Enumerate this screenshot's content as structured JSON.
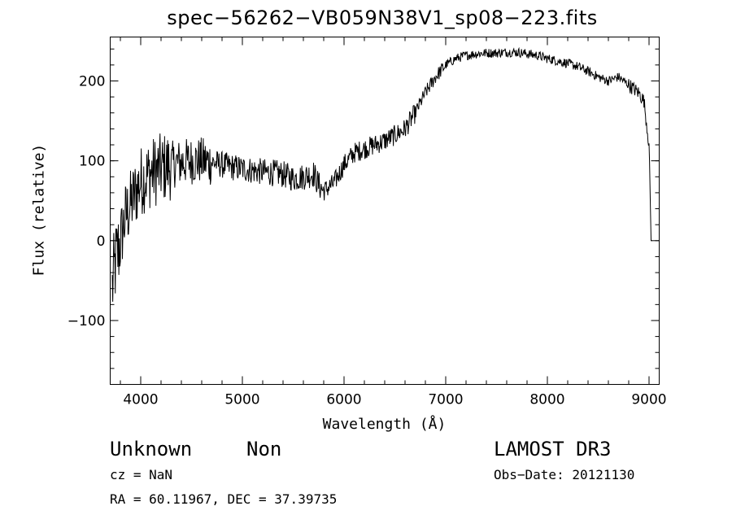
{
  "chart_data": {
    "type": "line",
    "title": "spec−56262−VB059N38V1_sp08−223.fits",
    "xlabel": "Wavelength (Å)",
    "ylabel": "Flux (relative)",
    "xlim": [
      3700,
      9100
    ],
    "ylim": [
      -180,
      255
    ],
    "xticks": [
      4000,
      5000,
      6000,
      7000,
      8000,
      9000
    ],
    "xtick_labels": [
      "4000",
      "5000",
      "6000",
      "7000",
      "8000",
      "9000"
    ],
    "yticks": [
      -100,
      0,
      100,
      200
    ],
    "ytick_labels": [
      "−100",
      "0",
      "100",
      "200"
    ],
    "grid": false,
    "series": [
      {
        "name": "flux",
        "x": [
          3720,
          3750,
          3800,
          3850,
          3900,
          3950,
          4000,
          4100,
          4200,
          4300,
          4400,
          4500,
          4600,
          4700,
          4800,
          4900,
          5000,
          5100,
          5200,
          5300,
          5400,
          5500,
          5600,
          5700,
          5750,
          5800,
          5900,
          6000,
          6100,
          6200,
          6300,
          6400,
          6500,
          6600,
          6700,
          6800,
          6900,
          7000,
          7100,
          7200,
          7300,
          7400,
          7500,
          7600,
          7700,
          7800,
          7900,
          8000,
          8100,
          8200,
          8300,
          8400,
          8500,
          8600,
          8700,
          8800,
          8900,
          8950,
          9000,
          9020
        ],
        "values": [
          -60,
          -30,
          0,
          30,
          45,
          60,
          75,
          85,
          90,
          95,
          98,
          100,
          100,
          98,
          95,
          92,
          90,
          88,
          86,
          85,
          83,
          78,
          80,
          84,
          70,
          62,
          72,
          95,
          110,
          115,
          120,
          125,
          132,
          140,
          160,
          185,
          205,
          220,
          228,
          232,
          234,
          235,
          235,
          236,
          236,
          234,
          232,
          228,
          225,
          222,
          218,
          212,
          205,
          200,
          205,
          195,
          185,
          175,
          120,
          0
        ]
      }
    ]
  },
  "annotations": {
    "object_class": "Unknown",
    "subclass": "Non",
    "cz": "cz = NaN",
    "coords": "RA =  60.11967, DEC =  37.39735",
    "survey": "LAMOST DR3",
    "obs_date": "Obs−Date: 20121130"
  }
}
